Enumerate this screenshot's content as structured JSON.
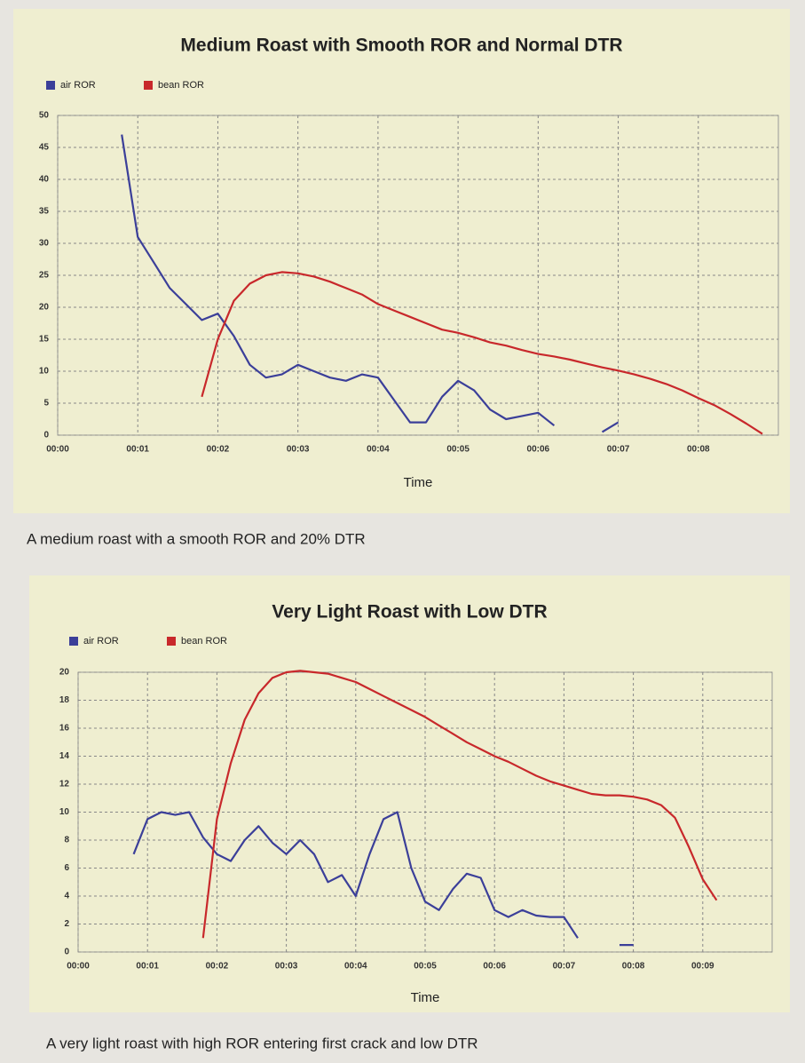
{
  "chart_data": [
    {
      "type": "line",
      "title": "Medium Roast with Smooth ROR and Normal DTR",
      "xlabel": "Time",
      "caption": "A medium roast with a smooth ROR and 20% DTR",
      "legend": "top-left",
      "grid": true,
      "x": [
        0,
        0.2,
        0.4,
        0.6,
        0.8,
        1.0,
        1.2,
        1.4,
        1.6,
        1.8,
        2.0,
        2.2,
        2.4,
        2.6,
        2.8,
        3.0,
        3.2,
        3.4,
        3.6,
        3.8,
        4.0,
        4.2,
        4.4,
        4.6,
        4.8,
        5.0,
        5.2,
        5.4,
        5.6,
        5.8,
        6.0,
        6.2,
        6.4,
        6.6,
        6.8,
        7.0,
        7.2,
        7.4,
        7.6,
        7.8,
        8.0,
        8.2,
        8.4,
        8.6,
        8.8
      ],
      "series": [
        {
          "name": "air ROR",
          "color": "#3b3f99",
          "values": [
            null,
            null,
            null,
            null,
            47,
            31,
            27,
            23,
            20.5,
            18,
            19,
            15.5,
            11,
            9,
            9.5,
            11,
            10,
            9,
            8.5,
            9.5,
            9,
            5.5,
            2,
            2,
            6,
            8.5,
            7,
            4,
            2.5,
            3,
            3.5,
            1.5,
            null,
            null,
            0.5,
            2,
            null,
            null,
            null,
            null,
            null,
            null,
            null,
            null,
            null
          ]
        },
        {
          "name": "bean ROR",
          "color": "#c8282b",
          "values": [
            null,
            null,
            null,
            null,
            null,
            null,
            null,
            null,
            null,
            6,
            15,
            21,
            23.7,
            25,
            25.5,
            25.3,
            24.8,
            24,
            23,
            22,
            20.5,
            19.5,
            18.5,
            17.5,
            16.5,
            16,
            15.3,
            14.5,
            14,
            13.3,
            12.7,
            12.3,
            11.8,
            11.2,
            10.6,
            10.1,
            9.5,
            8.8,
            8,
            7,
            5.8,
            4.7,
            3.3,
            1.8,
            0.2
          ]
        }
      ],
      "xlim": [
        0,
        9
      ],
      "xticks": [
        {
          "value": 0,
          "label": "00:00"
        },
        {
          "value": 1,
          "label": "00:01"
        },
        {
          "value": 2,
          "label": "00:02"
        },
        {
          "value": 3,
          "label": "00:03"
        },
        {
          "value": 4,
          "label": "00:04"
        },
        {
          "value": 5,
          "label": "00:05"
        },
        {
          "value": 6,
          "label": "00:06"
        },
        {
          "value": 7,
          "label": "00:07"
        },
        {
          "value": 8,
          "label": "00:08"
        }
      ],
      "ylim": [
        0,
        50
      ],
      "yticks": [
        0,
        5,
        10,
        15,
        20,
        25,
        30,
        35,
        40,
        45,
        50
      ]
    },
    {
      "type": "line",
      "title": "Very Light Roast with Low DTR",
      "xlabel": "Time",
      "caption": "A very light roast with high ROR entering first crack and low DTR",
      "legend": "top-left",
      "grid": true,
      "x": [
        0,
        0.2,
        0.4,
        0.6,
        0.8,
        1.0,
        1.2,
        1.4,
        1.6,
        1.8,
        2.0,
        2.2,
        2.4,
        2.6,
        2.8,
        3.0,
        3.2,
        3.4,
        3.6,
        3.8,
        4.0,
        4.2,
        4.4,
        4.6,
        4.8,
        5.0,
        5.2,
        5.4,
        5.6,
        5.8,
        6.0,
        6.2,
        6.4,
        6.6,
        6.8,
        7.0,
        7.2,
        7.4,
        7.6,
        7.8,
        8.0,
        8.2,
        8.4,
        8.6,
        8.8,
        9.0,
        9.2
      ],
      "series": [
        {
          "name": "air ROR",
          "color": "#3b3f99",
          "values": [
            null,
            null,
            null,
            null,
            7,
            9.5,
            10,
            9.8,
            10,
            8.2,
            7,
            6.5,
            8,
            9,
            7.8,
            7,
            8,
            7,
            5,
            5.5,
            4,
            7,
            9.5,
            10,
            6,
            3.6,
            3,
            4.5,
            5.6,
            5.3,
            3,
            2.5,
            3,
            2.6,
            2.5,
            2.5,
            1,
            null,
            null,
            0.5,
            0.5,
            null,
            null,
            null,
            null,
            null,
            null
          ]
        },
        {
          "name": "bean ROR",
          "color": "#c8282b",
          "values": [
            null,
            null,
            null,
            null,
            null,
            null,
            null,
            null,
            null,
            1,
            9.5,
            13.5,
            16.6,
            18.5,
            19.6,
            20,
            20.1,
            20,
            19.9,
            19.6,
            19.3,
            18.8,
            18.3,
            17.8,
            17.3,
            16.8,
            16.2,
            15.6,
            15,
            14.5,
            14,
            13.6,
            13.1,
            12.6,
            12.2,
            11.9,
            11.6,
            11.3,
            11.2,
            11.2,
            11.1,
            10.9,
            10.5,
            9.6,
            7.5,
            5.2,
            3.7
          ]
        }
      ],
      "xlim": [
        0,
        10
      ],
      "xticks": [
        {
          "value": 0,
          "label": "00:00"
        },
        {
          "value": 1,
          "label": "00:01"
        },
        {
          "value": 2,
          "label": "00:02"
        },
        {
          "value": 3,
          "label": "00:03"
        },
        {
          "value": 4,
          "label": "00:04"
        },
        {
          "value": 5,
          "label": "00:05"
        },
        {
          "value": 6,
          "label": "00:06"
        },
        {
          "value": 7,
          "label": "00:07"
        },
        {
          "value": 8,
          "label": "00:08"
        },
        {
          "value": 9,
          "label": "00:09"
        }
      ],
      "ylim": [
        0,
        20
      ],
      "yticks": [
        0,
        2,
        4,
        6,
        8,
        10,
        12,
        14,
        16,
        18,
        20
      ]
    }
  ]
}
